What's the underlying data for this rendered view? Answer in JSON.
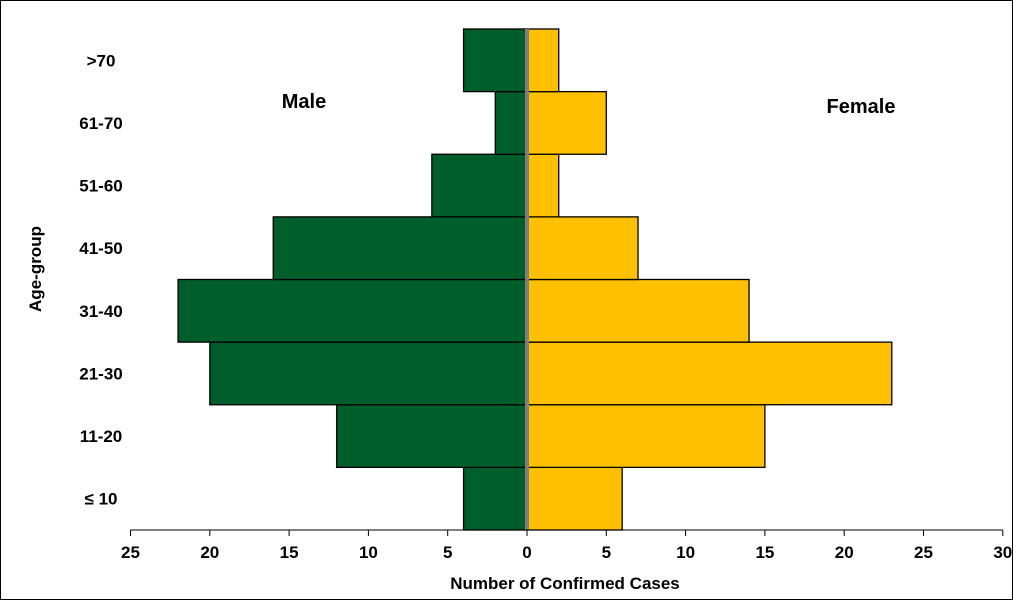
{
  "chart_data": {
    "type": "bar",
    "orientation": "horizontal-population-pyramid",
    "categories": [
      "≤ 10",
      "11-20",
      "21-30",
      "31-40",
      "41-50",
      "51-60",
      "61-70",
      ">70"
    ],
    "series": [
      {
        "name": "Male",
        "values": [
          4,
          12,
          20,
          22,
          16,
          6,
          2,
          4
        ],
        "color": "#005E2B",
        "side": "left"
      },
      {
        "name": "Female",
        "values": [
          6,
          15,
          23,
          14,
          7,
          2,
          5,
          2
        ],
        "color": "#FFC000",
        "side": "right"
      }
    ],
    "xlabel": "Number of Confirmed Cases",
    "ylabel": "Age-group",
    "xlim": [
      -25,
      30
    ],
    "xticks": [
      -25,
      -20,
      -15,
      -10,
      -5,
      0,
      5,
      10,
      15,
      20,
      25,
      30
    ],
    "xtick_labels": [
      "25",
      "20",
      "15",
      "10",
      "5",
      "0",
      "5",
      "10",
      "15",
      "20",
      "25",
      "30"
    ],
    "grid": false,
    "legend": "none"
  }
}
